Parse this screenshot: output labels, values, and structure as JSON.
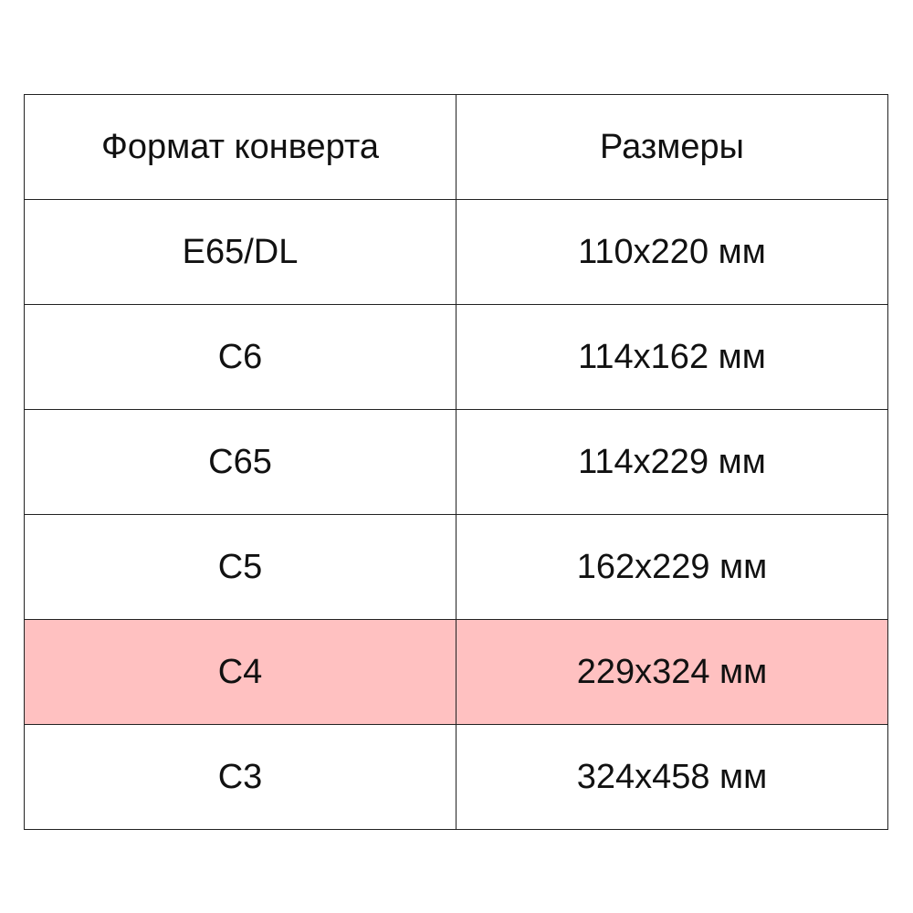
{
  "table": {
    "headers": [
      "Формат конверта",
      "Размеры"
    ],
    "rows": [
      {
        "format": "E65/DL",
        "size": "110x220 мм",
        "highlighted": false
      },
      {
        "format": "C6",
        "size": "114x162 мм",
        "highlighted": false
      },
      {
        "format": "C65",
        "size": "114x229 мм",
        "highlighted": false
      },
      {
        "format": "C5",
        "size": "162x229 мм",
        "highlighted": false
      },
      {
        "format": "C4",
        "size": "229x324 мм",
        "highlighted": true
      },
      {
        "format": "C3",
        "size": "324x458 мм",
        "highlighted": false
      }
    ],
    "highlight_color": "#ffc1c1"
  }
}
